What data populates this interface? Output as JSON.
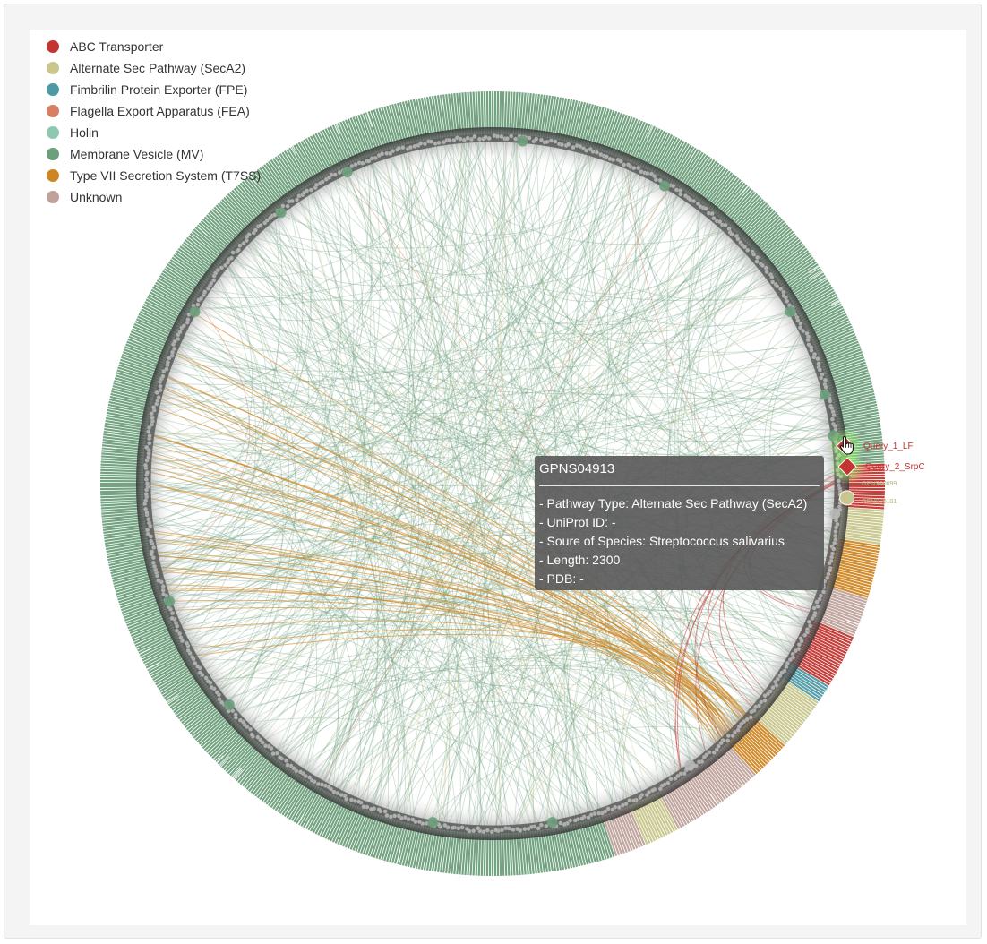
{
  "legend": [
    {
      "label": "ABC Transporter",
      "color": "#c23531"
    },
    {
      "label": "Alternate Sec Pathway (SecA2)",
      "color": "#c9c78d"
    },
    {
      "label": "Fimbrilin Protein Exporter (FPE)",
      "color": "#4e9aa4"
    },
    {
      "label": "Flagella Export Apparatus (FEA)",
      "color": "#d77e64"
    },
    {
      "label": "Holin",
      "color": "#8fc8b0"
    },
    {
      "label": "Membrane Vesicle (MV)",
      "color": "#6d9f7c"
    },
    {
      "label": "Type VII Secretion System (T7SS)",
      "color": "#cf8622"
    },
    {
      "label": "Unknown",
      "color": "#bfa39b"
    }
  ],
  "query_nodes": [
    {
      "label": "Query_1_LF",
      "color": "#c23531"
    },
    {
      "label": "Query_2_SrpC",
      "color": "#c23531"
    }
  ],
  "small_labels": [
    "GPNS00099",
    "GPNS00101"
  ],
  "tooltip": {
    "title": "GPNS04913",
    "lines": [
      "- Pathway Type: Alternate Sec Pathway (SecA2)",
      "- UniProt ID: -",
      "- Soure of Species: Streptococcus salivarius",
      "- Length: 2300",
      "- PDB: -"
    ]
  },
  "icons": {
    "cursor": "hand-pointer-icon"
  }
}
